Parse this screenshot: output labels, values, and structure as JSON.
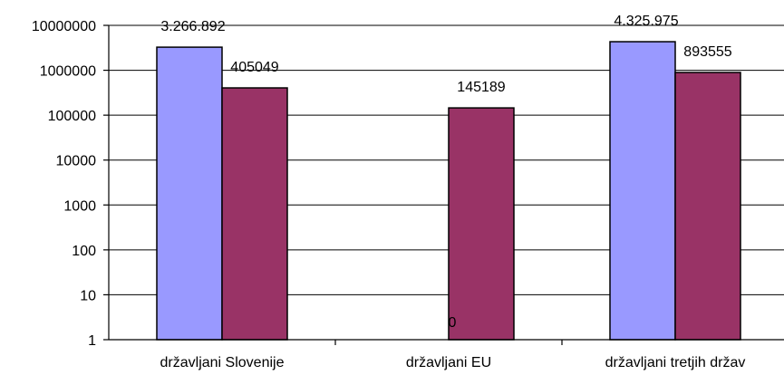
{
  "chart_data": {
    "type": "bar",
    "y_scale": "log",
    "ylim": [
      1,
      10000000
    ],
    "y_ticks": [
      "1",
      "10",
      "100",
      "1000",
      "10000",
      "100000",
      "1000000",
      "10000000"
    ],
    "grid": true,
    "categories": [
      "državljani Slovenije",
      "državljani EU",
      "državljani tretjih držav"
    ],
    "series": [
      {
        "color": "#9999ff",
        "values": [
          3266892,
          0,
          4325975
        ],
        "labels": [
          "3.266.892",
          "0",
          "4.325.975"
        ]
      },
      {
        "color": "#993366",
        "values": [
          405049,
          145189,
          893555
        ],
        "labels": [
          "405049",
          "145189",
          "893555"
        ]
      }
    ]
  }
}
